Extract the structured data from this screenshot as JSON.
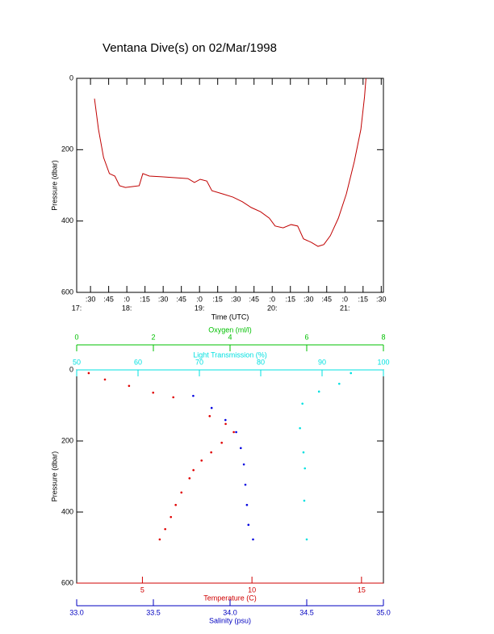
{
  "chart_data": [
    {
      "type": "line",
      "title": "Ventana Dive(s) on 02/Mar/1998",
      "xlabel": "Time (UTC)",
      "ylabel": "Pressure (dbar)",
      "xlim": [
        17.31,
        21.53
      ],
      "ylim": [
        0,
        600
      ],
      "y_inverted": true,
      "xticks": [
        {
          "value": 17.5,
          "label": ":30"
        },
        {
          "value": 17.75,
          "label": ":45"
        },
        {
          "value": 18,
          "label": ":0"
        },
        {
          "value": 18.25,
          "label": ":15"
        },
        {
          "value": 18.5,
          "label": ":30"
        },
        {
          "value": 18.75,
          "label": ":45"
        },
        {
          "value": 19,
          "label": ":0"
        },
        {
          "value": 19.25,
          "label": ":15"
        },
        {
          "value": 19.5,
          "label": ":30"
        },
        {
          "value": 19.75,
          "label": ":45"
        },
        {
          "value": 20,
          "label": ":0"
        },
        {
          "value": 20.25,
          "label": ":15"
        },
        {
          "value": 20.5,
          "label": ":30"
        },
        {
          "value": 20.75,
          "label": ":45"
        },
        {
          "value": 21,
          "label": ":0"
        },
        {
          "value": 21.25,
          "label": ":15"
        },
        {
          "value": 21.5,
          "label": ":30"
        }
      ],
      "hour_ticks": [
        {
          "value": 17.31,
          "label": "17:"
        },
        {
          "value": 18,
          "label": "18:"
        },
        {
          "value": 19,
          "label": "19:"
        },
        {
          "value": 20,
          "label": "20:"
        },
        {
          "value": 21,
          "label": "21:"
        }
      ],
      "yticks": [
        0,
        200,
        400,
        600
      ],
      "series": [
        {
          "color": "#c00000",
          "x": [
            17.555,
            17.61,
            17.68,
            17.76,
            17.835,
            17.9,
            17.98,
            18.09,
            18.17,
            18.22,
            18.31,
            18.48,
            18.7,
            18.84,
            18.93,
            19.01,
            19.1,
            19.17,
            19.32,
            19.46,
            19.59,
            19.71,
            19.84,
            19.96,
            20.04,
            20.15,
            20.26,
            20.35,
            20.43,
            20.54,
            20.63,
            20.71,
            20.8,
            20.91,
            21.02,
            21.13,
            21.22,
            21.27,
            21.29
          ],
          "values": [
            57,
            143,
            222,
            267,
            274,
            301,
            306,
            303,
            301,
            267,
            274,
            276,
            279,
            281,
            292,
            283,
            288,
            315,
            324,
            333,
            346,
            362,
            374,
            392,
            414,
            419,
            410,
            414,
            450,
            460,
            471,
            466,
            441,
            392,
            324,
            233,
            143,
            52,
            0
          ]
        }
      ]
    },
    {
      "type": "scatter",
      "ylabel": "Pressure (dbar)",
      "ylim": [
        0,
        600
      ],
      "y_inverted": true,
      "yticks": [
        0,
        200,
        400,
        600
      ],
      "x_axes": [
        {
          "label": "Oxygen (ml/l)",
          "color": "#00c000",
          "position": "top",
          "xlim": [
            0,
            8
          ],
          "xticks": [
            0,
            2,
            4,
            6,
            8
          ]
        },
        {
          "label": "Light Transmission (%)",
          "color": "#00e0e0",
          "position": "top",
          "xlim": [
            50,
            100
          ],
          "xticks": [
            50,
            60,
            70,
            80,
            90,
            100
          ]
        },
        {
          "label": "Temperature (C)",
          "color": "#d00000",
          "position": "bottom",
          "xlim": [
            2,
            16
          ],
          "xticks": [
            5,
            10,
            15
          ]
        },
        {
          "label": "Salinity (psu)",
          "color": "#0000c0",
          "position": "bottom",
          "xlim": [
            33,
            35
          ],
          "xticks": [
            {
              "value": 33,
              "label": "33.0"
            },
            33.5,
            {
              "value": 34,
              "label": "34.0"
            },
            34.5,
            {
              "value": 35,
              "label": "35.0"
            }
          ]
        }
      ],
      "series": [
        {
          "axis": 2,
          "color": "#e00000",
          "x": [
            2.55,
            3.29,
            4.39,
            5.49,
            6.41,
            8.07,
            8.8,
            9.17,
            8.62,
            8.14,
            7.7,
            7.33,
            7.15,
            6.78,
            6.52,
            6.3,
            6.04,
            5.79
          ],
          "values": [
            9,
            27,
            45,
            64,
            77,
            130,
            152,
            175,
            205,
            232,
            255,
            282,
            305,
            345,
            380,
            414,
            448,
            477
          ]
        },
        {
          "axis": 3,
          "color": "#0000e0",
          "x": [
            33.76,
            33.88,
            33.97,
            34.04,
            34.07,
            34.09,
            34.1,
            34.11,
            34.12,
            34.15
          ],
          "values": [
            73,
            107,
            141,
            175,
            220,
            266,
            323,
            380,
            436,
            477
          ]
        },
        {
          "axis": 1,
          "color": "#00e0e0",
          "x": [
            94.7,
            92.8,
            89.5,
            86.8,
            86.4,
            86.97,
            87.2,
            87.1,
            87.5
          ],
          "values": [
            9,
            39,
            61,
            95,
            164,
            232,
            277,
            368,
            477
          ]
        }
      ]
    }
  ]
}
